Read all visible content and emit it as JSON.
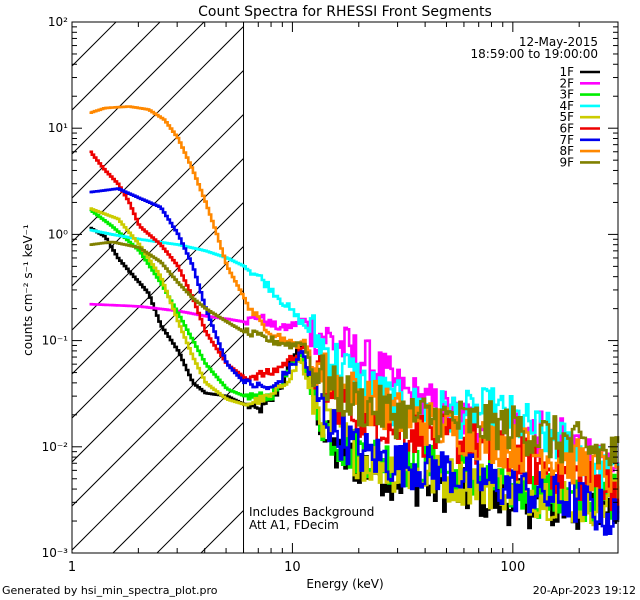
{
  "chart_data": {
    "type": "line",
    "title": "Count Spectra for RHESSI Front Segments",
    "xlabel": "Energy (keV)",
    "ylabel": "counts cm⁻² s⁻¹ keV⁻¹",
    "xscale": "log",
    "yscale": "log",
    "xlim": [
      1,
      300
    ],
    "ylim": [
      0.001,
      100
    ],
    "x_tick_labels": [
      "1",
      "10",
      "100"
    ],
    "y_tick_labels": [
      "10⁻³",
      "10⁻²",
      "10⁻¹",
      "10⁰",
      "10¹",
      "10²"
    ],
    "date": "12-May-2015",
    "time_range": "18:59:00 to 19:00:00",
    "annotation_lines": [
      "Includes Background",
      "Att A1, FDecim"
    ],
    "hatched_region_keV": [
      1,
      6
    ],
    "footer_left": "Generated by hsi_min_spectra_plot.pro",
    "footer_right": "20-Apr-2023 19:12",
    "series": [
      {
        "name": "1F",
        "color": "#000000",
        "points": [
          [
            1.2,
            1.15
          ],
          [
            1.4,
            0.95
          ],
          [
            1.6,
            0.6
          ],
          [
            1.8,
            0.45
          ],
          [
            2.2,
            0.28
          ],
          [
            2.5,
            0.14
          ],
          [
            3.0,
            0.08
          ],
          [
            3.5,
            0.04
          ],
          [
            4.0,
            0.032
          ],
          [
            5.0,
            0.03
          ],
          [
            6.0,
            0.025
          ],
          [
            7.0,
            0.022
          ],
          [
            8.0,
            0.028
          ],
          [
            9.0,
            0.04
          ],
          [
            10.0,
            0.07
          ],
          [
            10.7,
            0.09
          ],
          [
            11.5,
            0.05
          ],
          [
            12.5,
            0.03
          ],
          [
            14.0,
            0.012
          ],
          [
            16.0,
            0.008
          ],
          [
            20.0,
            0.007
          ],
          [
            30.0,
            0.005
          ],
          [
            50.0,
            0.004
          ],
          [
            100.0,
            0.003
          ],
          [
            200.0,
            0.0025
          ],
          [
            300.0,
            0.003
          ]
        ]
      },
      {
        "name": "2F",
        "color": "#ff00ff",
        "points": [
          [
            1.2,
            0.22
          ],
          [
            2.0,
            0.21
          ],
          [
            3.0,
            0.19
          ],
          [
            4.0,
            0.17
          ],
          [
            5.0,
            0.16
          ],
          [
            6.0,
            0.15
          ],
          [
            7.0,
            0.17
          ],
          [
            8.0,
            0.14
          ],
          [
            9.0,
            0.13
          ],
          [
            10.0,
            0.14
          ],
          [
            11.0,
            0.16
          ],
          [
            12.0,
            0.13
          ],
          [
            15.0,
            0.1
          ],
          [
            20.0,
            0.07
          ],
          [
            25.0,
            0.05
          ],
          [
            30.0,
            0.035
          ],
          [
            40.0,
            0.025
          ],
          [
            60.0,
            0.018
          ],
          [
            100.0,
            0.015
          ],
          [
            150.0,
            0.012
          ],
          [
            200.0,
            0.01
          ],
          [
            300.0,
            0.004
          ]
        ]
      },
      {
        "name": "3F",
        "color": "#00ee00",
        "points": [
          [
            1.2,
            1.7
          ],
          [
            1.5,
            1.2
          ],
          [
            2.0,
            0.7
          ],
          [
            2.5,
            0.35
          ],
          [
            3.0,
            0.18
          ],
          [
            3.5,
            0.1
          ],
          [
            4.0,
            0.06
          ],
          [
            5.0,
            0.035
          ],
          [
            6.0,
            0.03
          ],
          [
            8.0,
            0.03
          ],
          [
            10.0,
            0.06
          ],
          [
            10.7,
            0.08
          ],
          [
            12.0,
            0.035
          ],
          [
            14.0,
            0.015
          ],
          [
            17.0,
            0.01
          ],
          [
            20.0,
            0.009
          ],
          [
            30.0,
            0.007
          ],
          [
            50.0,
            0.006
          ],
          [
            100.0,
            0.004
          ],
          [
            200.0,
            0.003
          ],
          [
            300.0,
            0.0035
          ]
        ]
      },
      {
        "name": "4F",
        "color": "#00ffff",
        "points": [
          [
            1.2,
            1.1
          ],
          [
            1.5,
            1.0
          ],
          [
            2.0,
            0.9
          ],
          [
            3.0,
            0.8
          ],
          [
            4.0,
            0.7
          ],
          [
            5.0,
            0.6
          ],
          [
            6.0,
            0.5
          ],
          [
            7.0,
            0.4
          ],
          [
            8.0,
            0.3
          ],
          [
            10.0,
            0.18
          ],
          [
            12.0,
            0.12
          ],
          [
            15.0,
            0.07
          ],
          [
            18.0,
            0.05
          ],
          [
            22.0,
            0.035
          ],
          [
            30.0,
            0.025
          ],
          [
            40.0,
            0.022
          ],
          [
            60.0,
            0.02
          ],
          [
            80.0,
            0.022
          ],
          [
            100.0,
            0.018
          ],
          [
            150.0,
            0.012
          ],
          [
            200.0,
            0.009
          ],
          [
            250.0,
            0.006
          ],
          [
            300.0,
            0.005
          ]
        ]
      },
      {
        "name": "5F",
        "color": "#cccc00",
        "points": [
          [
            1.2,
            1.75
          ],
          [
            1.6,
            1.4
          ],
          [
            2.0,
            0.8
          ],
          [
            2.5,
            0.4
          ],
          [
            3.0,
            0.15
          ],
          [
            3.5,
            0.07
          ],
          [
            4.0,
            0.04
          ],
          [
            5.0,
            0.028
          ],
          [
            6.0,
            0.025
          ],
          [
            8.0,
            0.03
          ],
          [
            10.0,
            0.05
          ],
          [
            10.7,
            0.07
          ],
          [
            12.0,
            0.03
          ],
          [
            15.0,
            0.015
          ],
          [
            20.0,
            0.008
          ],
          [
            30.0,
            0.006
          ],
          [
            50.0,
            0.005
          ],
          [
            100.0,
            0.004
          ],
          [
            200.0,
            0.003
          ],
          [
            300.0,
            0.003
          ]
        ]
      },
      {
        "name": "6F",
        "color": "#ee0000",
        "points": [
          [
            1.2,
            6.0
          ],
          [
            1.4,
            4.0
          ],
          [
            1.6,
            3.0
          ],
          [
            1.8,
            2.0
          ],
          [
            2.0,
            1.2
          ],
          [
            2.5,
            0.8
          ],
          [
            3.0,
            0.5
          ],
          [
            3.5,
            0.25
          ],
          [
            4.0,
            0.12
          ],
          [
            5.0,
            0.06
          ],
          [
            6.0,
            0.045
          ],
          [
            8.0,
            0.05
          ],
          [
            10.0,
            0.07
          ],
          [
            11.0,
            0.09
          ],
          [
            12.0,
            0.06
          ],
          [
            15.0,
            0.03
          ],
          [
            20.0,
            0.02
          ],
          [
            30.0,
            0.015
          ],
          [
            50.0,
            0.012
          ],
          [
            100.0,
            0.008
          ],
          [
            200.0,
            0.005
          ],
          [
            300.0,
            0.004
          ]
        ]
      },
      {
        "name": "7F",
        "color": "#0000ee",
        "points": [
          [
            1.2,
            2.5
          ],
          [
            1.6,
            2.7
          ],
          [
            2.0,
            2.2
          ],
          [
            2.5,
            1.8
          ],
          [
            3.0,
            1.0
          ],
          [
            3.5,
            0.5
          ],
          [
            4.0,
            0.2
          ],
          [
            5.0,
            0.06
          ],
          [
            6.0,
            0.04
          ],
          [
            8.0,
            0.035
          ],
          [
            10.0,
            0.06
          ],
          [
            11.0,
            0.08
          ],
          [
            12.0,
            0.04
          ],
          [
            15.0,
            0.015
          ],
          [
            20.0,
            0.009
          ],
          [
            30.0,
            0.007
          ],
          [
            50.0,
            0.006
          ],
          [
            100.0,
            0.004
          ],
          [
            200.0,
            0.003
          ],
          [
            300.0,
            0.002
          ]
        ]
      },
      {
        "name": "8F",
        "color": "#ff8800",
        "points": [
          [
            1.2,
            14.0
          ],
          [
            1.4,
            15.5
          ],
          [
            1.8,
            16.0
          ],
          [
            2.2,
            15.0
          ],
          [
            2.6,
            12.0
          ],
          [
            3.0,
            8.0
          ],
          [
            3.5,
            4.0
          ],
          [
            4.0,
            2.0
          ],
          [
            4.5,
            1.0
          ],
          [
            5.0,
            0.5
          ],
          [
            6.0,
            0.25
          ],
          [
            7.0,
            0.15
          ],
          [
            8.0,
            0.12
          ],
          [
            10.0,
            0.09
          ],
          [
            11.0,
            0.1
          ],
          [
            12.0,
            0.07
          ],
          [
            15.0,
            0.04
          ],
          [
            20.0,
            0.03
          ],
          [
            30.0,
            0.02
          ],
          [
            50.0,
            0.015
          ],
          [
            100.0,
            0.01
          ],
          [
            200.0,
            0.007
          ],
          [
            300.0,
            0.005
          ]
        ]
      },
      {
        "name": "9F",
        "color": "#808000",
        "points": [
          [
            1.2,
            0.8
          ],
          [
            1.5,
            0.85
          ],
          [
            2.0,
            0.75
          ],
          [
            2.5,
            0.55
          ],
          [
            3.0,
            0.35
          ],
          [
            3.5,
            0.25
          ],
          [
            4.0,
            0.2
          ],
          [
            5.0,
            0.15
          ],
          [
            6.0,
            0.12
          ],
          [
            8.0,
            0.1
          ],
          [
            10.0,
            0.09
          ],
          [
            11.0,
            0.1
          ],
          [
            12.0,
            0.06
          ],
          [
            15.0,
            0.035
          ],
          [
            20.0,
            0.025
          ],
          [
            30.0,
            0.02
          ],
          [
            50.0,
            0.018
          ],
          [
            100.0,
            0.015
          ],
          [
            200.0,
            0.01
          ],
          [
            300.0,
            0.008
          ]
        ]
      }
    ]
  }
}
